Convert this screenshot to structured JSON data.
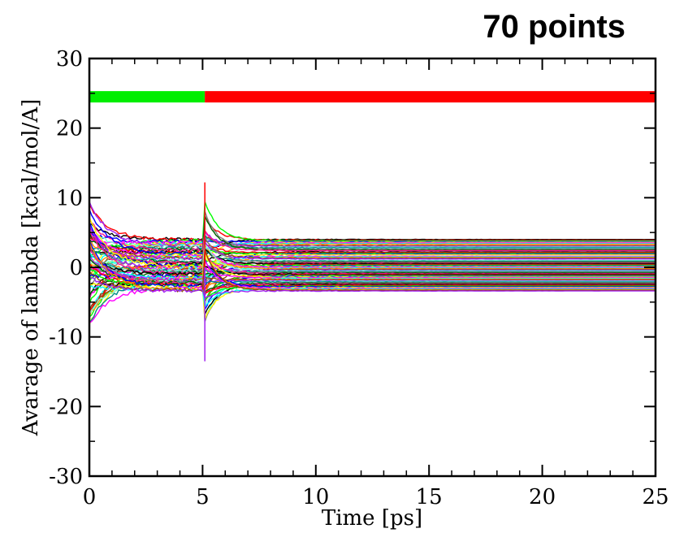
{
  "chart_data": {
    "type": "line",
    "title": "",
    "annotation": "70 points",
    "xlabel": "Time [ps]",
    "ylabel": "Avarage of lambda [kcal/mol/A]",
    "xlim": [
      0,
      25
    ],
    "ylim": [
      -30,
      30
    ],
    "x_ticks": [
      0,
      5,
      10,
      15,
      20,
      25
    ],
    "x_tick_labels": [
      "0",
      "5",
      "10",
      "15",
      "20",
      "25"
    ],
    "y_ticks": [
      -30,
      -20,
      -10,
      0,
      10,
      20,
      30
    ],
    "y_tick_labels": [
      "-30",
      "-20",
      "-10",
      "0",
      "10",
      "20",
      "30"
    ],
    "grid": false,
    "legend": "none",
    "phase_bar": {
      "y": 24.5,
      "segments": [
        {
          "x_start": 0,
          "x_end": 5.1,
          "color": "#00ee00"
        },
        {
          "x_start": 5.1,
          "x_end": 25,
          "color": "#ff0000"
        }
      ]
    },
    "series_count": 70,
    "series_final_values": [
      4.0,
      3.9,
      3.8,
      3.7,
      3.6,
      3.5,
      3.4,
      3.3,
      3.1,
      3.0,
      2.9,
      2.8,
      2.6,
      2.5,
      2.4,
      2.2,
      2.1,
      2.0,
      1.9,
      1.8,
      1.6,
      1.5,
      1.4,
      1.3,
      1.2,
      1.0,
      0.9,
      0.8,
      0.7,
      0.6,
      0.5,
      0.4,
      0.3,
      0.2,
      0.1,
      0.0,
      -0.1,
      -0.2,
      -0.3,
      -0.4,
      -0.5,
      -0.6,
      -0.7,
      -0.8,
      -0.9,
      -1.0,
      -1.1,
      -1.2,
      -1.3,
      -1.4,
      -1.5,
      -1.6,
      -1.7,
      -1.8,
      -1.9,
      -2.0,
      -2.1,
      -2.2,
      -2.3,
      -2.4,
      -2.5,
      -2.6,
      -2.7,
      -2.8,
      -2.9,
      -3.0,
      -3.1,
      -3.2,
      -3.3,
      -3.4
    ],
    "spike_extremes": {
      "x": 5.1,
      "max": 12.2,
      "min": -13.5
    },
    "colors": [
      "#000000",
      "#ff0000",
      "#00ff00",
      "#0000ff",
      "#ffff00",
      "#ff00ff",
      "#00ffff",
      "#ff8c00",
      "#8b4513",
      "#a020f0",
      "#7fffd4",
      "#008b8b",
      "#808080",
      "#006400",
      "#ff1493"
    ]
  }
}
